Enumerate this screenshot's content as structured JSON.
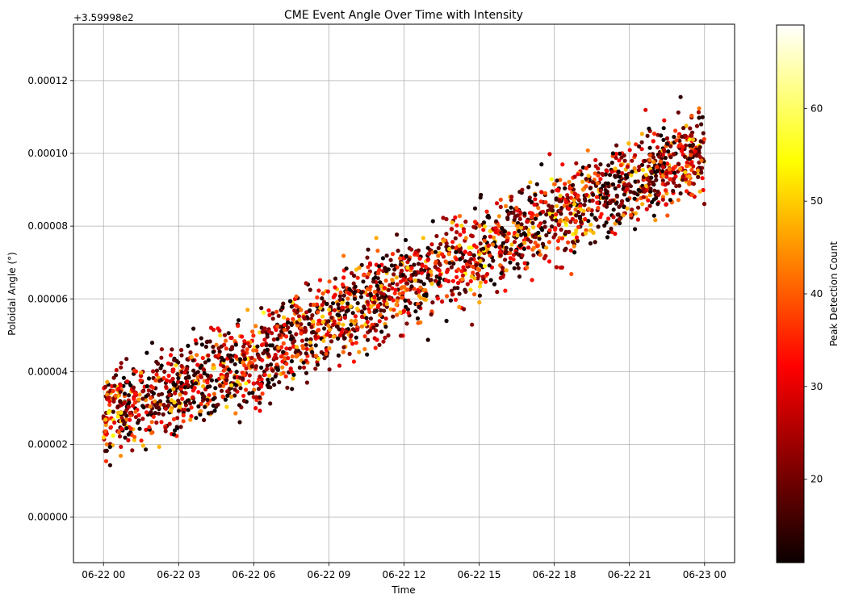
{
  "chart_data": {
    "type": "scatter",
    "title": "CME Event Angle Over Time with Intensity",
    "xlabel": "Time",
    "ylabel": "Poloidal Angle (°)",
    "y_offset_label": "+3.59998e2",
    "y_offset": 359.998,
    "x_ticks": [
      "06-22 00",
      "06-22 03",
      "06-22 06",
      "06-22 09",
      "06-22 12",
      "06-22 15",
      "06-22 18",
      "06-22 21",
      "06-23 00"
    ],
    "x_tick_hours": [
      0,
      3,
      6,
      9,
      12,
      15,
      18,
      21,
      24
    ],
    "x_range_hours": [
      -1.2,
      25.2
    ],
    "y_ticks": [
      "0.00000",
      "0.00002",
      "0.00004",
      "0.00006",
      "0.00008",
      "0.00010",
      "0.00012"
    ],
    "y_tick_values": [
      0,
      2e-05,
      4e-05,
      6e-05,
      8e-05,
      0.0001,
      0.00012
    ],
    "ylim": [
      -1.25e-05,
      0.0001355
    ],
    "grid": true,
    "colormap": "hot",
    "colorbar": {
      "label": "Peak Detection Count",
      "range": [
        11,
        69
      ],
      "ticks": [
        20,
        30,
        40,
        50,
        60
      ]
    },
    "trend": {
      "description_points": [
        {
          "hour": 0,
          "angle_offset": 2.8e-05
        },
        {
          "hour": 3,
          "angle_offset": 3.5e-05
        },
        {
          "hour": 6,
          "angle_offset": 4.3e-05
        },
        {
          "hour": 9,
          "angle_offset": 5.4e-05
        },
        {
          "hour": 12,
          "angle_offset": 6.4e-05
        },
        {
          "hour": 15,
          "angle_offset": 7.2e-05
        },
        {
          "hour": 18,
          "angle_offset": 8.2e-05
        },
        {
          "hour": 21,
          "angle_offset": 9.2e-05
        },
        {
          "hour": 24,
          "angle_offset": 0.000101
        }
      ],
      "hour_span": [
        0,
        24
      ]
    }
  }
}
